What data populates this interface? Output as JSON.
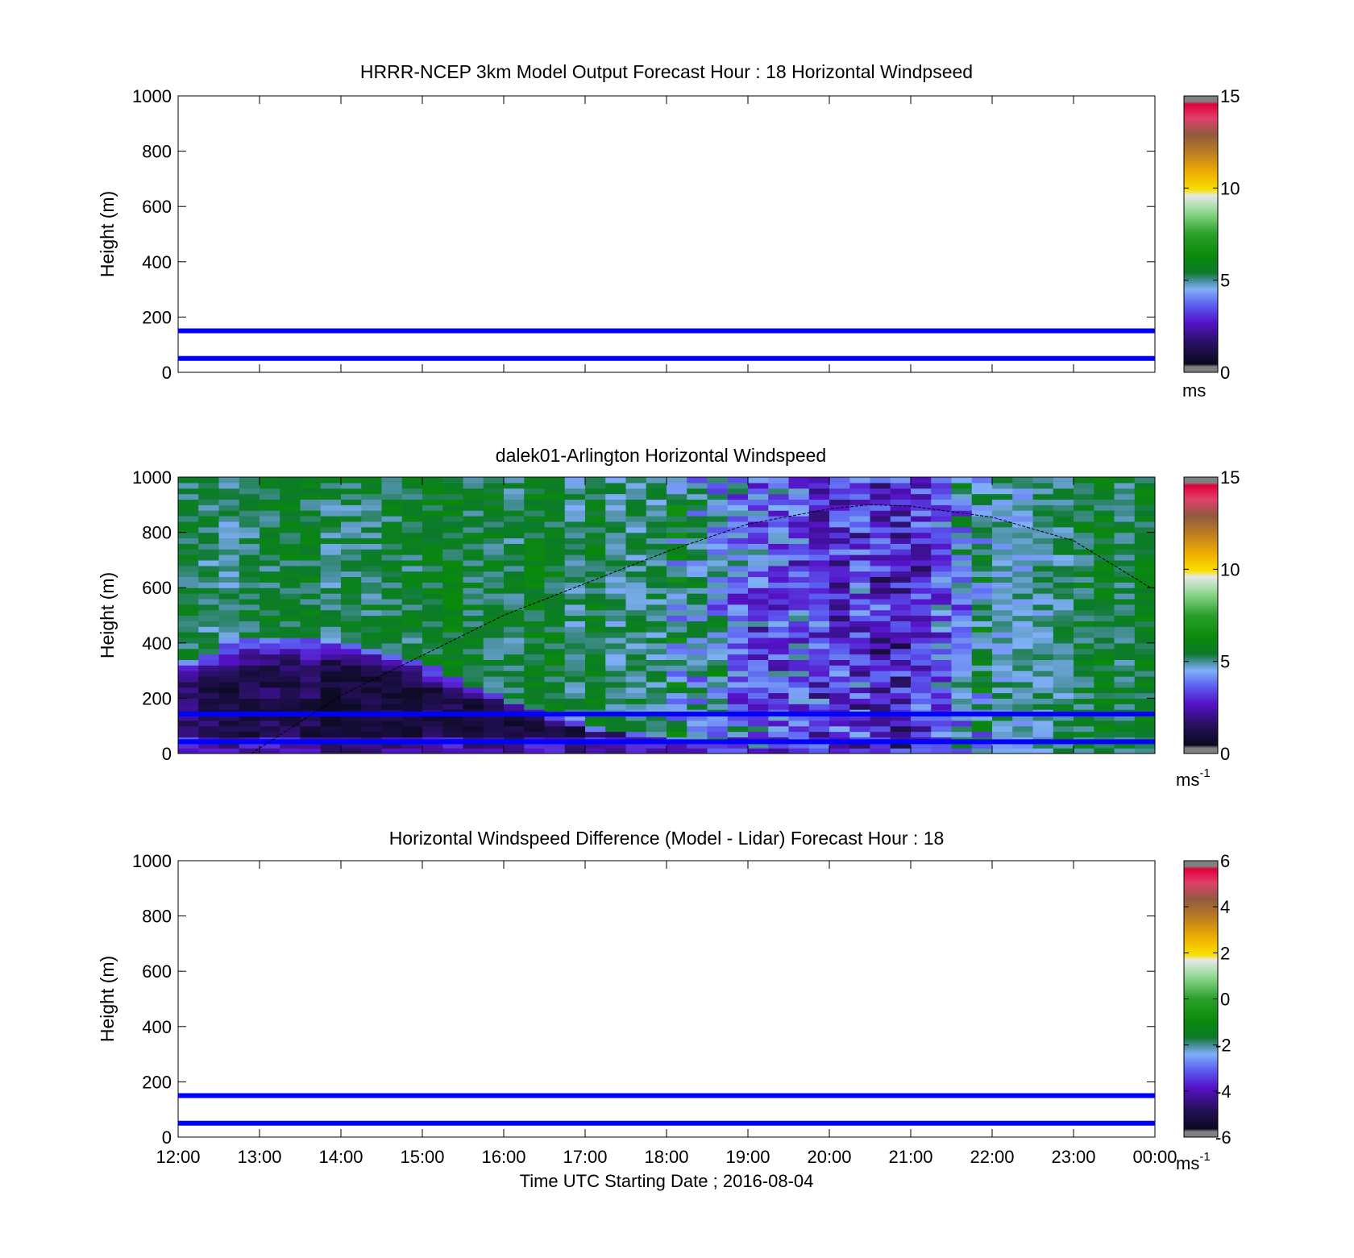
{
  "figure": {
    "x_tick_labels": [
      "12:00",
      "13:00",
      "14:00",
      "15:00",
      "16:00",
      "17:00",
      "18:00",
      "19:00",
      "20:00",
      "21:00",
      "22:00",
      "23:00",
      "00:00"
    ],
    "xlabel": "Time UTC  Starting Date ; 2016-08-04"
  },
  "chart_data": [
    {
      "type": "heatmap",
      "title": "HRRR-NCEP 3km Model Output   Forecast Hour : 18 Horizontal Windpseed",
      "ylabel": "Height (m)",
      "ylim": [
        0,
        1000
      ],
      "y_ticks": [
        0,
        200,
        400,
        600,
        800,
        1000
      ],
      "y_tick_labels": [
        "0",
        "200",
        "400",
        "600",
        "800",
        "1000"
      ],
      "x_range": [
        "12:00",
        "00:00"
      ],
      "colorbar": {
        "range": [
          0,
          15
        ],
        "ticks": [
          0,
          5,
          10,
          15
        ],
        "tick_labels": [
          "0",
          "5",
          "10",
          "15"
        ],
        "unit": "ms",
        "unit_sup": ""
      },
      "reference_lines_m": [
        50,
        150
      ],
      "reference_line_color": "#0000ff",
      "data": "none shown"
    },
    {
      "type": "heatmap",
      "title": "dalek01-Arlington  Horizontal Windspeed",
      "ylabel": "Height (m)",
      "ylim": [
        0,
        1000
      ],
      "y_ticks": [
        0,
        200,
        400,
        600,
        800,
        1000
      ],
      "y_tick_labels": [
        "0",
        "200",
        "400",
        "600",
        "800",
        "1000"
      ],
      "x_range": [
        "12:00",
        "00:00"
      ],
      "colorbar": {
        "range": [
          0,
          15
        ],
        "ticks": [
          0,
          5,
          10,
          15
        ],
        "tick_labels": [
          "0",
          "5",
          "10",
          "15"
        ],
        "unit": "ms",
        "unit_sup": "-1"
      },
      "reference_lines_m": [
        50,
        150
      ],
      "reference_line_color": "#0000ff",
      "cell_width_hours": 0.25,
      "cell_height_m": 20,
      "data_end_hour": 23.83,
      "approx_speed_profile": {
        "note_keys": "hours after 12:00 UTC; heights in m; speeds in m/s",
        "low_level_jet_top_m": [
          [
            0,
            330
          ],
          [
            1,
            430
          ],
          [
            2,
            400
          ],
          [
            3,
            330
          ],
          [
            4,
            200
          ],
          [
            5,
            100
          ],
          [
            6,
            60
          ],
          [
            7,
            40
          ],
          [
            7.5,
            0
          ]
        ],
        "mixed_layer_speed": [
          [
            0,
            5.2
          ],
          [
            2,
            5.4
          ],
          [
            4,
            5.6
          ],
          [
            6,
            5.0
          ],
          [
            7,
            3.8
          ],
          [
            8,
            3.0
          ],
          [
            9,
            2.6
          ],
          [
            10,
            4.8
          ],
          [
            11,
            5.2
          ],
          [
            12,
            5.6
          ]
        ],
        "stable_layer_speed": [
          [
            0,
            1.6
          ],
          [
            2,
            1.0
          ],
          [
            4,
            1.1
          ],
          [
            6,
            1.3
          ],
          [
            7.5,
            2.6
          ]
        ]
      },
      "boundary_layer_curve": {
        "color": "#000000",
        "style": "dashed",
        "points": [
          [
            0.9,
            0
          ],
          [
            2,
            210
          ],
          [
            4,
            500
          ],
          [
            6,
            730
          ],
          [
            7,
            830
          ],
          [
            8,
            885
          ],
          [
            8.5,
            900
          ],
          [
            9,
            895
          ],
          [
            10,
            855
          ],
          [
            11,
            770
          ],
          [
            12,
            590
          ]
        ]
      }
    },
    {
      "type": "heatmap",
      "title": "Horizontal Windspeed Difference (Model - Lidar) Forecast Hour : 18",
      "ylabel": "Height (m)",
      "ylim": [
        0,
        1000
      ],
      "y_ticks": [
        0,
        200,
        400,
        600,
        800,
        1000
      ],
      "y_tick_labels": [
        "0",
        "200",
        "400",
        "600",
        "800",
        "1000"
      ],
      "x_range": [
        "12:00",
        "00:00"
      ],
      "colorbar": {
        "range": [
          -6,
          6
        ],
        "ticks": [
          -6,
          -4,
          -2,
          0,
          2,
          4,
          6
        ],
        "tick_labels": [
          "-6",
          "-4",
          "-2",
          "0",
          "2",
          "4",
          "6"
        ],
        "unit": "ms",
        "unit_sup": "-1"
      },
      "reference_lines_m": [
        50,
        150
      ],
      "reference_line_color": "#0000ff",
      "data": "none shown"
    }
  ],
  "colormap_stops": [
    [
      0.0,
      "#808080"
    ],
    [
      0.02,
      "#808080"
    ],
    [
      0.03,
      "#0a0a20"
    ],
    [
      0.1,
      "#25105a"
    ],
    [
      0.18,
      "#5512c8"
    ],
    [
      0.24,
      "#5a5af0"
    ],
    [
      0.3,
      "#80b0f8"
    ],
    [
      0.33,
      "#4a90a0"
    ],
    [
      0.36,
      "#0c7a2c"
    ],
    [
      0.42,
      "#0a8a0a"
    ],
    [
      0.5,
      "#2aa02a"
    ],
    [
      0.58,
      "#90d890"
    ],
    [
      0.64,
      "#e8e8e8"
    ],
    [
      0.66,
      "#f8e000"
    ],
    [
      0.72,
      "#f0b000"
    ],
    [
      0.79,
      "#c08020"
    ],
    [
      0.86,
      "#905a40"
    ],
    [
      0.92,
      "#e0406a"
    ],
    [
      0.97,
      "#e0003a"
    ],
    [
      0.98,
      "#808080"
    ],
    [
      1.0,
      "#808080"
    ]
  ]
}
